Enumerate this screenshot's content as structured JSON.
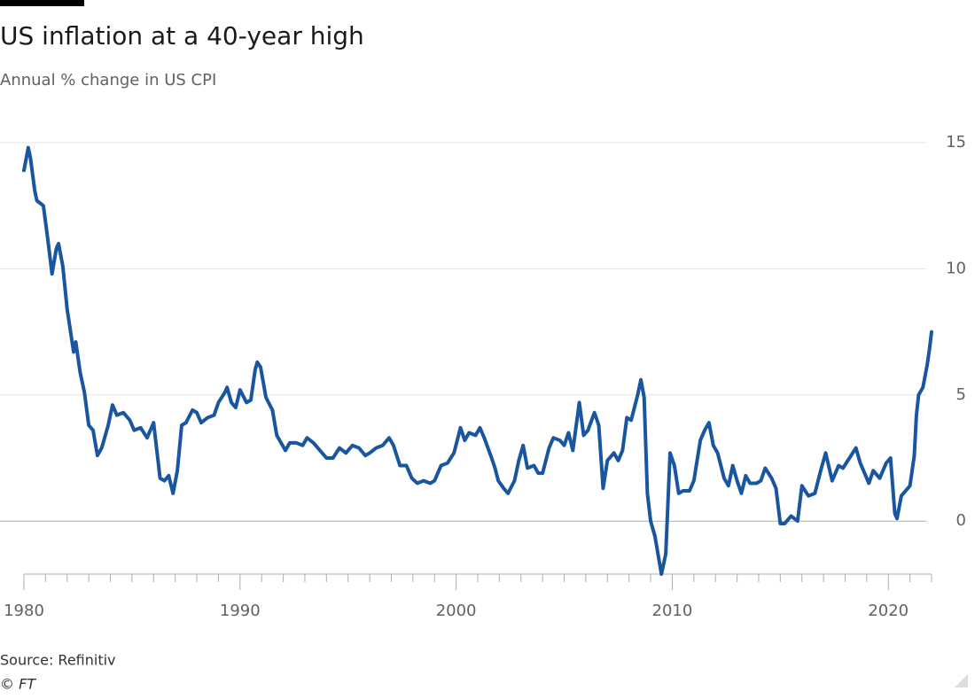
{
  "chart_data": {
    "type": "line",
    "title": "US inflation at a 40-year high",
    "subtitle": "Annual % change in US CPI",
    "source": "Source: Refinitiv",
    "credit": "© FT",
    "grid": true,
    "y_axis_side": "right",
    "xlim": [
      1980,
      2022
    ],
    "ylim": [
      -2.1,
      15
    ],
    "xticks": [
      1980,
      1990,
      2000,
      2010,
      2020
    ],
    "xminorticks": [
      1981,
      1982,
      1983,
      1984,
      1985,
      1986,
      1987,
      1988,
      1989,
      1991,
      1992,
      1993,
      1994,
      1995,
      1996,
      1997,
      1998,
      1999,
      2001,
      2002,
      2003,
      2004,
      2005,
      2006,
      2007,
      2008,
      2009,
      2011,
      2012,
      2013,
      2014,
      2015,
      2016,
      2017,
      2018,
      2019,
      2021,
      2022
    ],
    "yticks": [
      0,
      5,
      10,
      15
    ],
    "series": [
      {
        "color": "#1a56a0",
        "x": [
          1980.0,
          1980.2,
          1980.3,
          1980.5,
          1980.6,
          1980.9,
          1981.1,
          1981.3,
          1981.5,
          1981.6,
          1981.8,
          1982.0,
          1982.3,
          1982.4,
          1982.6,
          1982.8,
          1983.0,
          1983.2,
          1983.4,
          1983.6,
          1983.9,
          1984.1,
          1984.3,
          1984.6,
          1984.9,
          1985.1,
          1985.4,
          1985.7,
          1986.0,
          1986.3,
          1986.5,
          1986.7,
          1986.9,
          1987.1,
          1987.3,
          1987.5,
          1987.8,
          1988.0,
          1988.2,
          1988.5,
          1988.8,
          1989.0,
          1989.3,
          1989.4,
          1989.6,
          1989.8,
          1990.0,
          1990.3,
          1990.5,
          1990.7,
          1990.8,
          1990.95,
          1991.2,
          1991.5,
          1991.7,
          1991.9,
          1992.1,
          1992.3,
          1992.6,
          1992.9,
          1993.1,
          1993.4,
          1993.7,
          1994.0,
          1994.3,
          1994.6,
          1994.9,
          1995.2,
          1995.5,
          1995.8,
          1996.0,
          1996.3,
          1996.6,
          1996.9,
          1997.1,
          1997.4,
          1997.7,
          1997.95,
          1998.2,
          1998.5,
          1998.8,
          1999.0,
          1999.3,
          1999.6,
          1999.9,
          2000.2,
          2000.4,
          2000.6,
          2000.9,
          2001.1,
          2001.3,
          2001.6,
          2001.8,
          2001.95,
          2002.2,
          2002.4,
          2002.7,
          2002.9,
          2003.1,
          2003.3,
          2003.6,
          2003.8,
          2004.0,
          2004.3,
          2004.5,
          2004.8,
          2005.0,
          2005.2,
          2005.4,
          2005.7,
          2005.9,
          2006.1,
          2006.4,
          2006.6,
          2006.8,
          2007.0,
          2007.3,
          2007.5,
          2007.7,
          2007.9,
          2008.1,
          2008.4,
          2008.55,
          2008.7,
          2008.85,
          2009.0,
          2009.2,
          2009.5,
          2009.7,
          2009.9,
          2010.1,
          2010.3,
          2010.5,
          2010.8,
          2011.0,
          2011.3,
          2011.5,
          2011.7,
          2011.9,
          2012.1,
          2012.4,
          2012.6,
          2012.8,
          2013.0,
          2013.2,
          2013.4,
          2013.6,
          2013.9,
          2014.1,
          2014.3,
          2014.6,
          2014.8,
          2015.0,
          2015.2,
          2015.5,
          2015.8,
          2016.0,
          2016.3,
          2016.6,
          2016.9,
          2017.1,
          2017.4,
          2017.7,
          2017.9,
          2018.2,
          2018.5,
          2018.7,
          2018.9,
          2019.1,
          2019.3,
          2019.6,
          2019.9,
          2020.1,
          2020.3,
          2020.4,
          2020.6,
          2020.8,
          2021.0,
          2021.2,
          2021.3,
          2021.4,
          2021.6,
          2021.8,
          2021.9,
          2022.0
        ],
        "values": [
          13.9,
          14.8,
          14.4,
          13.1,
          12.7,
          12.5,
          11.2,
          9.8,
          10.8,
          11.0,
          10.1,
          8.4,
          6.7,
          7.1,
          5.9,
          5.1,
          3.8,
          3.6,
          2.6,
          2.9,
          3.8,
          4.6,
          4.2,
          4.3,
          4.0,
          3.6,
          3.7,
          3.3,
          3.9,
          1.7,
          1.6,
          1.8,
          1.1,
          2.0,
          3.8,
          3.9,
          4.4,
          4.3,
          3.9,
          4.1,
          4.2,
          4.7,
          5.1,
          5.3,
          4.7,
          4.5,
          5.2,
          4.7,
          4.8,
          6.0,
          6.3,
          6.1,
          4.9,
          4.4,
          3.4,
          3.1,
          2.8,
          3.1,
          3.1,
          3.0,
          3.3,
          3.1,
          2.8,
          2.5,
          2.5,
          2.9,
          2.7,
          3.0,
          2.9,
          2.6,
          2.7,
          2.9,
          3.0,
          3.3,
          3.0,
          2.2,
          2.2,
          1.7,
          1.5,
          1.6,
          1.5,
          1.6,
          2.2,
          2.3,
          2.7,
          3.7,
          3.2,
          3.5,
          3.4,
          3.7,
          3.3,
          2.6,
          2.1,
          1.6,
          1.3,
          1.1,
          1.6,
          2.4,
          3.0,
          2.1,
          2.2,
          1.9,
          1.9,
          2.9,
          3.3,
          3.2,
          3.0,
          3.5,
          2.8,
          4.7,
          3.4,
          3.6,
          4.3,
          3.8,
          1.3,
          2.4,
          2.7,
          2.4,
          2.8,
          4.1,
          4.0,
          5.0,
          5.6,
          4.9,
          1.1,
          0.0,
          -0.6,
          -2.1,
          -1.3,
          2.7,
          2.2,
          1.1,
          1.2,
          1.2,
          1.6,
          3.2,
          3.6,
          3.9,
          3.0,
          2.7,
          1.7,
          1.4,
          2.2,
          1.6,
          1.1,
          1.8,
          1.5,
          1.5,
          1.6,
          2.1,
          1.7,
          1.3,
          -0.1,
          -0.1,
          0.2,
          0.0,
          1.4,
          1.0,
          1.1,
          2.1,
          2.7,
          1.6,
          2.2,
          2.1,
          2.5,
          2.9,
          2.3,
          1.9,
          1.5,
          2.0,
          1.7,
          2.3,
          2.5,
          0.3,
          0.1,
          1.0,
          1.2,
          1.4,
          2.6,
          4.2,
          5.0,
          5.3,
          6.2,
          6.8,
          7.5
        ]
      }
    ]
  }
}
